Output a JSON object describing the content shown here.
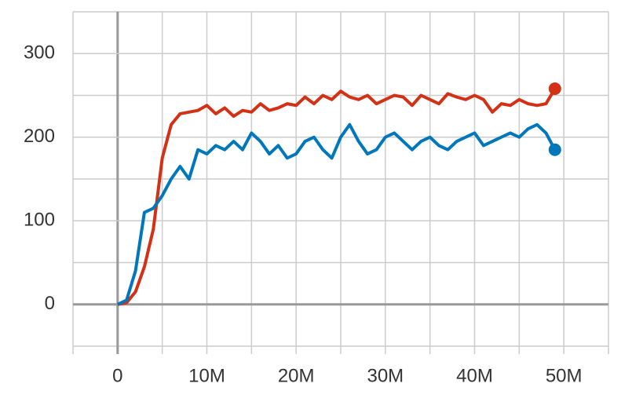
{
  "chart_data": {
    "type": "line",
    "x": [
      0,
      1000000,
      2000000,
      3000000,
      4000000,
      5000000,
      6000000,
      7000000,
      8000000,
      9000000,
      10000000,
      11000000,
      12000000,
      13000000,
      14000000,
      15000000,
      16000000,
      17000000,
      18000000,
      19000000,
      20000000,
      21000000,
      22000000,
      23000000,
      24000000,
      25000000,
      26000000,
      27000000,
      28000000,
      29000000,
      30000000,
      31000000,
      32000000,
      33000000,
      34000000,
      35000000,
      36000000,
      37000000,
      38000000,
      39000000,
      40000000,
      41000000,
      42000000,
      43000000,
      44000000,
      45000000,
      46000000,
      47000000,
      48000000,
      49000000
    ],
    "series": [
      {
        "color": "#d33115",
        "values": [
          0,
          2,
          15,
          45,
          90,
          175,
          215,
          228,
          230,
          232,
          238,
          228,
          235,
          225,
          232,
          230,
          240,
          232,
          235,
          240,
          238,
          248,
          240,
          250,
          245,
          255,
          248,
          245,
          250,
          240,
          245,
          250,
          248,
          238,
          250,
          245,
          240,
          252,
          248,
          245,
          250,
          245,
          230,
          240,
          238,
          245,
          240,
          238,
          240,
          258
        ]
      },
      {
        "color": "#0077bb",
        "values": [
          0,
          5,
          40,
          110,
          115,
          130,
          150,
          165,
          150,
          185,
          180,
          190,
          185,
          195,
          185,
          205,
          195,
          180,
          190,
          175,
          180,
          195,
          200,
          185,
          175,
          200,
          215,
          195,
          180,
          185,
          200,
          205,
          195,
          185,
          195,
          200,
          190,
          185,
          195,
          200,
          205,
          190,
          195,
          200,
          205,
          200,
          210,
          215,
          205,
          185
        ]
      }
    ],
    "xlim": [
      -5000000,
      55000000
    ],
    "ylim": [
      -50,
      350
    ],
    "xticks": [
      0,
      {
        "value": 10000000,
        "label": "10M"
      },
      {
        "value": 20000000,
        "label": "20M"
      },
      {
        "value": 30000000,
        "label": "30M"
      },
      {
        "value": 40000000,
        "label": "40M"
      },
      {
        "value": 50000000,
        "label": "50M"
      }
    ],
    "yticks": [
      0,
      100,
      200,
      300
    ],
    "xminor": [
      -5000000,
      5000000,
      15000000,
      25000000,
      35000000,
      45000000,
      55000000
    ],
    "yminor": [
      -50,
      50,
      150,
      250,
      350
    ],
    "grid": true
  }
}
